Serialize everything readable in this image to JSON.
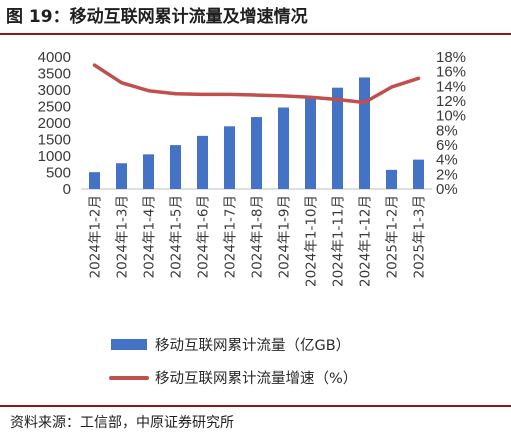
{
  "header": {
    "title": "图 19：移动互联网累计流量及增速情况"
  },
  "footer": {
    "source": "资料来源：工信部，中原证券研究所"
  },
  "colors": {
    "bar": "#4472c4",
    "line": "#c0504d",
    "rule": "#8b1a1a"
  },
  "chart_data": {
    "type": "bar",
    "categories": [
      "2024年1-2月",
      "2024年1-3月",
      "2024年1-4月",
      "2024年1-5月",
      "2024年1-6月",
      "2024年1-7月",
      "2024年1-8月",
      "2024年1-9月",
      "2024年1-10月",
      "2024年1-11月",
      "2024年1-12月",
      "2025年1-2月",
      "2025年1-3月"
    ],
    "series": [
      {
        "name": "移动互联网累计流量（亿GB）",
        "type": "bar",
        "axis": "left",
        "values": [
          510,
          780,
          1050,
          1330,
          1610,
          1900,
          2180,
          2470,
          2790,
          3070,
          3380,
          580,
          890
        ]
      },
      {
        "name": "移动互联网累计流量增速（%）",
        "type": "line",
        "axis": "right",
        "values": [
          16.9,
          14.5,
          13.4,
          13.0,
          12.9,
          12.9,
          12.8,
          12.7,
          12.5,
          12.2,
          11.8,
          13.9,
          15.1
        ]
      }
    ],
    "y_left": {
      "ylim": [
        0,
        4000
      ],
      "ticks": [
        "0",
        "500",
        "1000",
        "1500",
        "2000",
        "2500",
        "3000",
        "3500",
        "4000"
      ]
    },
    "y_right": {
      "ylim": [
        0,
        18
      ],
      "ticks": [
        "0%",
        "2%",
        "4%",
        "6%",
        "8%",
        "10%",
        "12%",
        "14%",
        "16%",
        "18%"
      ]
    },
    "grid": false,
    "legend": "bottom"
  }
}
